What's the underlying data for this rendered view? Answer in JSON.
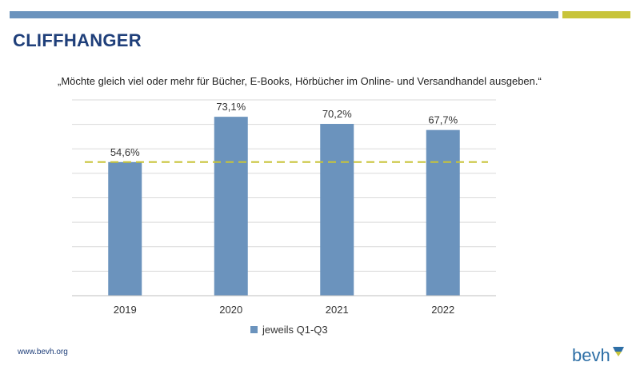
{
  "header": {
    "title": "CLIFFHANGER",
    "title_color": "#1f3f7a",
    "bar_blue": "#6b93bd",
    "bar_yellow": "#c8c43a"
  },
  "chart_data": {
    "type": "bar",
    "subtitle": "„Möchte gleich viel oder mehr für Bücher, E-Books, Hörbücher im Online- und Versandhandel ausgeben.“",
    "categories": [
      "2019",
      "2020",
      "2021",
      "2022"
    ],
    "series": [
      {
        "name": "jeweils Q1-Q3",
        "values": [
          54.6,
          73.1,
          70.2,
          67.7
        ]
      }
    ],
    "data_labels": [
      "54,6%",
      "73,1%",
      "70,2%",
      "67,7%"
    ],
    "reference_line": {
      "value": 54.6,
      "style": "dashed",
      "color": "#c8c43a"
    },
    "ylim": [
      0,
      80
    ],
    "grid": true,
    "legend_position": "bottom",
    "bar_color": "#6b93bd"
  },
  "footer": {
    "url": "www.bevh.org",
    "url_color": "#1f3f7a",
    "logo_text": "bevh",
    "logo_color": "#2e6fa6",
    "logo_icon": "bevh-logo-icon"
  }
}
